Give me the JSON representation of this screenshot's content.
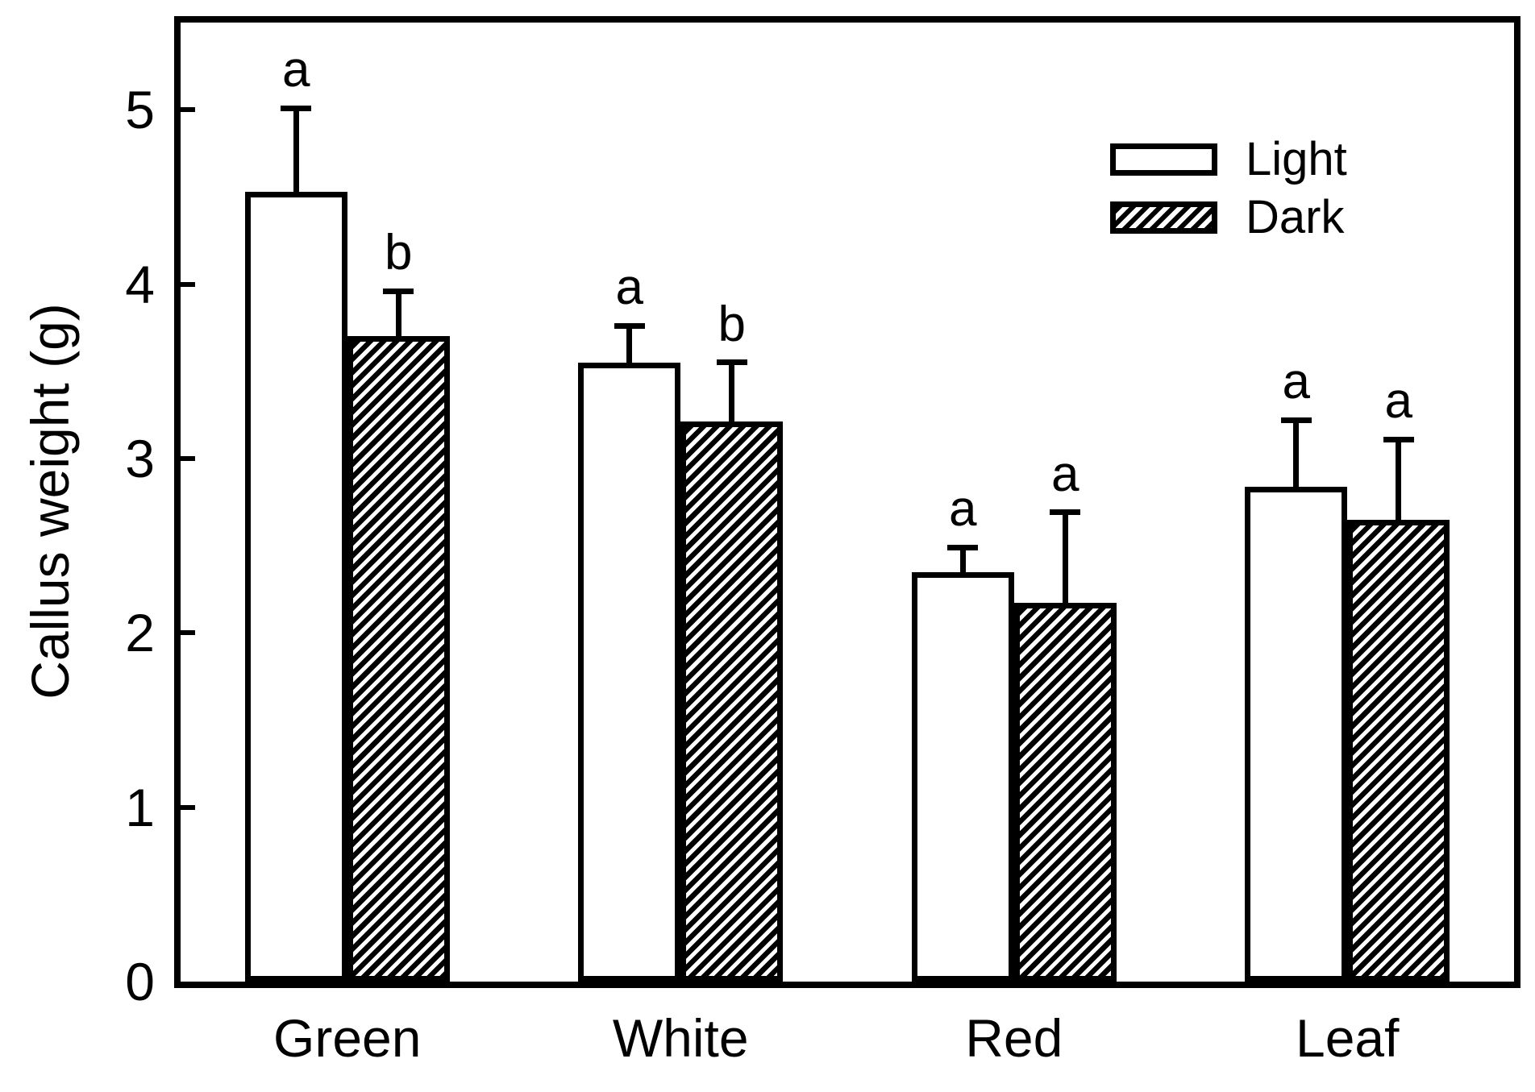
{
  "figure": {
    "background_color": "#ffffff",
    "foreground_color": "#000000"
  },
  "y_axis": {
    "title": "Callus weight (g)",
    "tick_labels": [
      "0",
      "1",
      "2",
      "3",
      "4",
      "5"
    ]
  },
  "x_axis": {
    "categories": [
      "Green",
      "White",
      "Red",
      "Leaf"
    ]
  },
  "legend": {
    "items": [
      {
        "label": "Light",
        "pattern": "solid-white"
      },
      {
        "label": "Dark",
        "pattern": "hatched"
      }
    ]
  },
  "chart_data": {
    "type": "bar",
    "title": "",
    "xlabel": "",
    "ylabel": "Callus weight (g)",
    "categories": [
      "Green",
      "White",
      "Red",
      "Leaf"
    ],
    "series": [
      {
        "name": "Light",
        "pattern": "solid-white",
        "values": [
          4.53,
          3.55,
          2.35,
          2.84
        ],
        "errors_upper": [
          0.48,
          0.21,
          0.14,
          0.38
        ],
        "significance_letters": [
          "a",
          "a",
          "a",
          "a"
        ]
      },
      {
        "name": "Dark",
        "pattern": "hatched",
        "values": [
          3.7,
          3.21,
          2.17,
          2.65
        ],
        "errors_upper": [
          0.26,
          0.34,
          0.52,
          0.46
        ],
        "significance_letters": [
          "b",
          "b",
          "a",
          "a"
        ]
      }
    ],
    "ylim": [
      0,
      5.5
    ],
    "yticks": [
      0,
      1,
      2,
      3,
      4,
      5
    ],
    "grid": false,
    "error_bars": "upper-only",
    "legend_position": "top-right-inside"
  }
}
